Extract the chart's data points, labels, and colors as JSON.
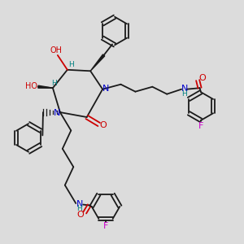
{
  "bg_color": "#dcdcdc",
  "bond_color": "#1a1a1a",
  "N_color": "#0000cc",
  "O_color": "#cc0000",
  "F_color": "#cc00cc",
  "H_color": "#008080",
  "figsize": [
    3.0,
    3.0
  ],
  "dpi": 100,
  "lw": 1.3,
  "ring_r": 0.055,
  "xlim": [
    0,
    1
  ],
  "ylim": [
    0,
    1
  ]
}
